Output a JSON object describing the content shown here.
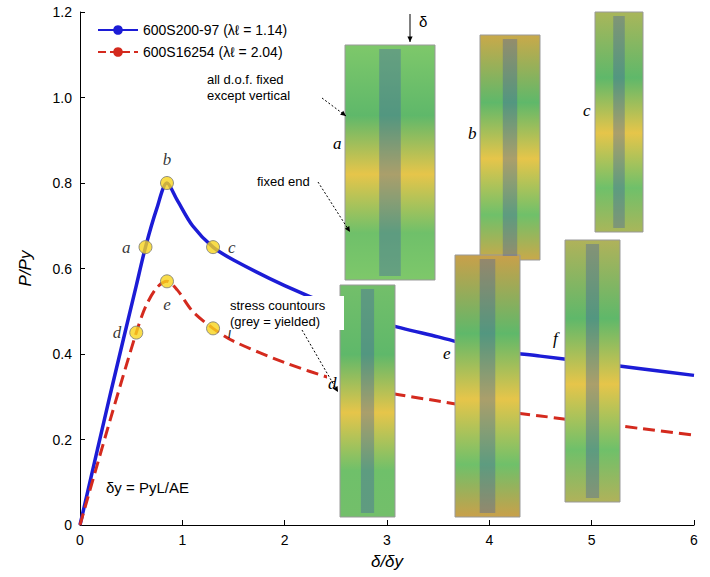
{
  "chart_data": {
    "type": "line",
    "xlabel": "δ/δy",
    "ylabel": "P/Py",
    "x": [
      0,
      0.3,
      0.55,
      0.64,
      0.75,
      0.85,
      0.95,
      1.1,
      1.3,
      1.5,
      2,
      2.5,
      3,
      3.5,
      4,
      4.5,
      5,
      5.5,
      6
    ],
    "xlim": [
      0,
      6
    ],
    "ylim": [
      0,
      1.2
    ],
    "xticks": [
      0,
      1,
      2,
      3,
      4,
      5,
      6
    ],
    "yticks": [
      0,
      0.2,
      0.4,
      0.6,
      0.8,
      {
        "value": 1,
        "label": "1.0"
      },
      1.2
    ],
    "grid": false,
    "legend": "upper left",
    "marker": "none",
    "series": [
      {
        "name": "600S200-97 (λℓ = 1.14)",
        "color": "#1c1cd6",
        "line_style": "solid",
        "values": [
          0,
          0.31,
          0.56,
          0.65,
          0.74,
          0.8,
          0.76,
          0.7,
          0.65,
          0.62,
          0.56,
          0.51,
          0.47,
          0.44,
          0.41,
          0.395,
          0.38,
          0.365,
          0.35
        ]
      },
      {
        "name": "600S16254 (λℓ = 2.04)",
        "color": "#d42a1e",
        "line_style": "dashed",
        "values": [
          0,
          0.25,
          0.45,
          0.51,
          0.555,
          0.57,
          0.55,
          0.5,
          0.46,
          0.43,
          0.38,
          0.34,
          0.31,
          0.29,
          0.27,
          0.255,
          0.24,
          0.225,
          0.21
        ]
      }
    ],
    "point_labels": [
      {
        "text": "a",
        "x": 0.64,
        "y": 0.65
      },
      {
        "text": "b",
        "x": 0.85,
        "y": 0.8
      },
      {
        "text": "c",
        "x": 1.3,
        "y": 0.65
      },
      {
        "text": "d",
        "x": 0.55,
        "y": 0.45
      },
      {
        "text": "e",
        "x": 0.85,
        "y": 0.57
      },
      {
        "text": "f",
        "x": 1.3,
        "y": 0.46
      }
    ],
    "annotations": [
      {
        "text": "δ"
      },
      {
        "text": "all d.o.f. fixed except vertical"
      },
      {
        "text": "fixed end"
      },
      {
        "text": "stress countours (grey = yielded)"
      },
      {
        "text": "δy = PyL/AE"
      }
    ]
  }
}
